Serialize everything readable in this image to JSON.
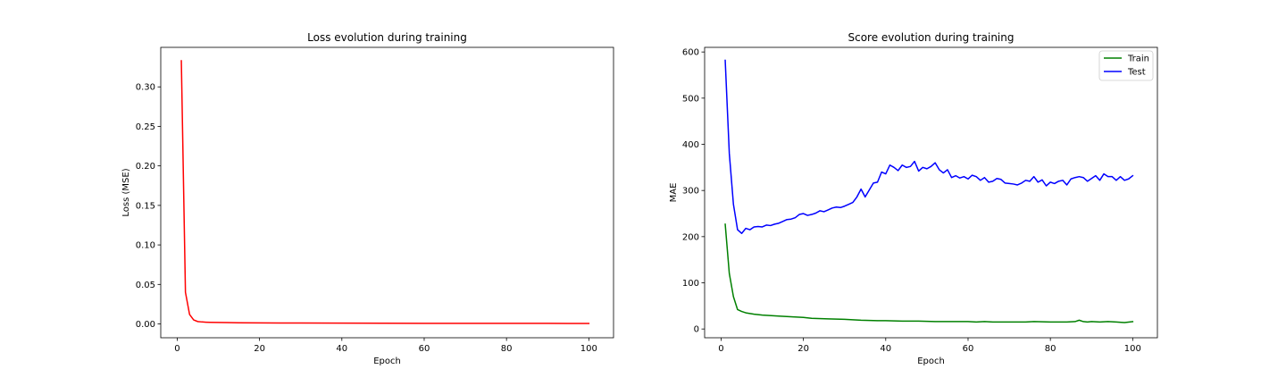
{
  "chart_data": [
    {
      "type": "line",
      "title": "Loss evolution during training",
      "xlabel": "Epoch",
      "ylabel": "Loss (MSE)",
      "xlim": [
        -4,
        106
      ],
      "ylim": [
        -0.0175,
        0.35
      ],
      "xticks": [
        0,
        20,
        40,
        60,
        80,
        100
      ],
      "yticks": [
        0.0,
        0.05,
        0.1,
        0.15,
        0.2,
        0.25,
        0.3
      ],
      "ytick_labels": [
        "0.00",
        "0.05",
        "0.10",
        "0.15",
        "0.20",
        "0.25",
        "0.30"
      ],
      "grid": false,
      "series": [
        {
          "color": "#ff0000",
          "x": [
            1,
            2,
            3,
            4,
            5,
            6,
            7,
            8,
            10,
            12,
            15,
            20,
            25,
            30,
            40,
            50,
            60,
            70,
            80,
            90,
            100
          ],
          "values": [
            0.333,
            0.04,
            0.012,
            0.005,
            0.003,
            0.0025,
            0.0022,
            0.002,
            0.0018,
            0.0017,
            0.0015,
            0.0013,
            0.0012,
            0.0011,
            0.001,
            0.0009,
            0.0008,
            0.0008,
            0.0007,
            0.0007,
            0.0006
          ]
        }
      ]
    },
    {
      "type": "line",
      "title": "Score evolution during training",
      "xlabel": "Epoch",
      "ylabel": "MAE",
      "xlim": [
        -4,
        106
      ],
      "ylim": [
        -19,
        610
      ],
      "xticks": [
        0,
        20,
        40,
        60,
        80,
        100
      ],
      "yticks": [
        0,
        100,
        200,
        300,
        400,
        500,
        600
      ],
      "ytick_labels": [
        "0",
        "100",
        "200",
        "300",
        "400",
        "500",
        "600"
      ],
      "grid": false,
      "legend_position": "top-right",
      "series": [
        {
          "name": "Train",
          "color": "#008000",
          "x": [
            1,
            2,
            3,
            4,
            5,
            6,
            8,
            10,
            14,
            18,
            20,
            22,
            26,
            30,
            34,
            38,
            40,
            44,
            48,
            52,
            56,
            60,
            62,
            64,
            66,
            70,
            74,
            76,
            80,
            84,
            86,
            87,
            88,
            89,
            90,
            92,
            94,
            96,
            98,
            100
          ],
          "values": [
            227,
            120,
            70,
            42,
            38,
            35,
            32,
            30,
            28,
            26,
            25,
            23,
            22,
            21,
            19,
            18,
            18,
            17,
            17,
            16,
            16,
            16,
            15,
            16,
            15,
            15,
            15,
            16,
            15,
            15,
            16,
            19,
            16,
            15,
            16,
            15,
            16,
            15,
            14,
            16
          ]
        },
        {
          "name": "Test",
          "color": "#0000ff",
          "x": [
            1,
            2,
            3,
            4,
            5,
            6,
            7,
            8,
            9,
            10,
            11,
            12,
            13,
            14,
            15,
            16,
            17,
            18,
            19,
            20,
            21,
            22,
            23,
            24,
            25,
            26,
            27,
            28,
            29,
            30,
            31,
            32,
            33,
            34,
            35,
            36,
            37,
            38,
            39,
            40,
            41,
            42,
            43,
            44,
            45,
            46,
            47,
            48,
            49,
            50,
            51,
            52,
            53,
            54,
            55,
            56,
            57,
            58,
            59,
            60,
            61,
            62,
            63,
            64,
            65,
            66,
            67,
            68,
            69,
            70,
            71,
            72,
            73,
            74,
            75,
            76,
            77,
            78,
            79,
            80,
            81,
            82,
            83,
            84,
            85,
            86,
            87,
            88,
            89,
            90,
            91,
            92,
            93,
            94,
            95,
            96,
            97,
            98,
            99,
            100
          ],
          "values": [
            582,
            380,
            270,
            215,
            207,
            218,
            215,
            221,
            222,
            221,
            225,
            224,
            227,
            229,
            233,
            237,
            238,
            241,
            248,
            250,
            246,
            248,
            251,
            256,
            254,
            258,
            262,
            264,
            263,
            266,
            270,
            274,
            286,
            303,
            286,
            301,
            316,
            318,
            340,
            336,
            355,
            350,
            343,
            355,
            350,
            352,
            363,
            342,
            350,
            347,
            352,
            360,
            345,
            338,
            345,
            328,
            332,
            327,
            330,
            325,
            333,
            330,
            322,
            328,
            318,
            320,
            326,
            324,
            316,
            315,
            314,
            312,
            316,
            322,
            320,
            330,
            318,
            323,
            310,
            318,
            315,
            320,
            322,
            312,
            325,
            328,
            330,
            328,
            320,
            326,
            332,
            322,
            336,
            330,
            330,
            322,
            330,
            322,
            325,
            332
          ]
        }
      ]
    }
  ]
}
